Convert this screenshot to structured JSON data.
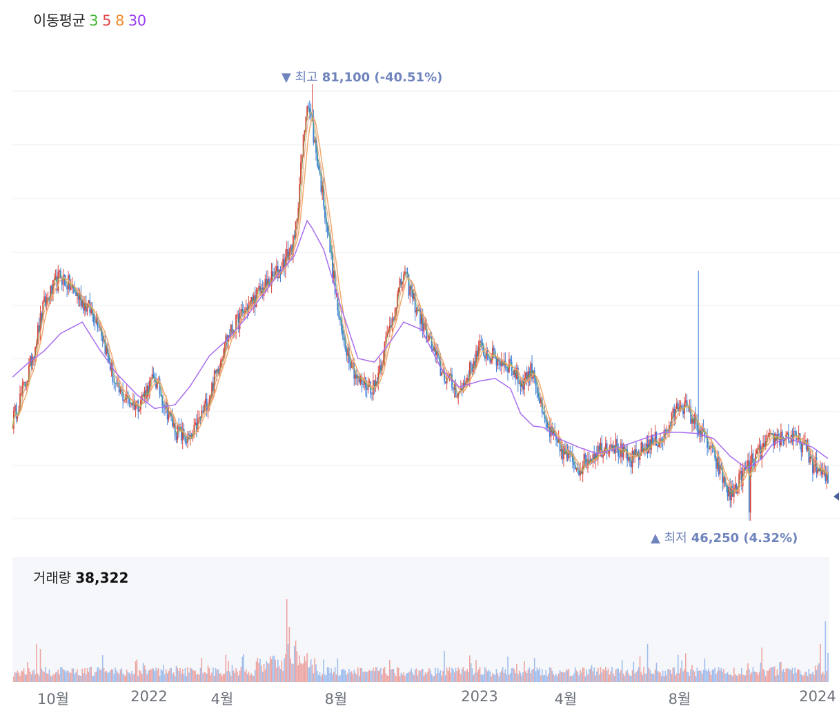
{
  "legend": {
    "label": "이동평균",
    "ma": [
      {
        "label": "3",
        "color": "#41b632"
      },
      {
        "label": "5",
        "color": "#e04848"
      },
      {
        "label": "8",
        "color": "#ec8b2c"
      },
      {
        "label": "30",
        "color": "#9b3cf0"
      }
    ]
  },
  "annotations": {
    "high": {
      "label": "최고",
      "value": "81,100 (-40.51%)",
      "marker": "▼"
    },
    "low": {
      "label": "최저",
      "value": "46,250 (4.32%)",
      "marker": "▲"
    }
  },
  "volume": {
    "label": "거래량",
    "value": "38,322"
  },
  "colors": {
    "up": "#d9453e",
    "down": "#3f7fd6",
    "ma3": "#41b632",
    "ma5": "#e04848",
    "ma8": "#f0ad72",
    "ma30": "#a86cf0",
    "vol_up": "#eca4a0",
    "vol_down": "#9fbdec",
    "annotation": "#6f84bd",
    "grid": "#eeeeee"
  },
  "chart_data": {
    "type": "candlestick",
    "price_high": 81100,
    "price_low": 46250,
    "x_tick_labels": [
      "10월",
      "2022",
      "4월",
      "8월",
      "2023",
      "4월",
      "8월",
      "2024"
    ],
    "close_series": [
      [
        0,
        54200
      ],
      [
        12,
        57800
      ],
      [
        25,
        63500
      ],
      [
        38,
        65800
      ],
      [
        55,
        63800
      ],
      [
        68,
        62200
      ],
      [
        82,
        56600
      ],
      [
        98,
        55500
      ],
      [
        112,
        57600
      ],
      [
        128,
        53500
      ],
      [
        140,
        52500
      ],
      [
        155,
        56200
      ],
      [
        168,
        60700
      ],
      [
        182,
        62900
      ],
      [
        195,
        64500
      ],
      [
        210,
        66200
      ],
      [
        222,
        68500
      ],
      [
        232,
        80000
      ],
      [
        236,
        77600
      ],
      [
        245,
        71800
      ],
      [
        258,
        61600
      ],
      [
        272,
        57400
      ],
      [
        285,
        56900
      ],
      [
        298,
        62100
      ],
      [
        308,
        66000
      ],
      [
        322,
        62200
      ],
      [
        338,
        58100
      ],
      [
        352,
        56400
      ],
      [
        368,
        60000
      ],
      [
        380,
        59200
      ],
      [
        392,
        58700
      ],
      [
        400,
        57200
      ],
      [
        410,
        58400
      ],
      [
        418,
        54200
      ],
      [
        430,
        52100
      ],
      [
        446,
        50500
      ],
      [
        460,
        51800
      ],
      [
        472,
        52500
      ],
      [
        486,
        50900
      ],
      [
        500,
        52300
      ],
      [
        513,
        53000
      ],
      [
        526,
        55800
      ],
      [
        540,
        53700
      ],
      [
        552,
        51400
      ],
      [
        565,
        48200
      ],
      [
        578,
        50400
      ],
      [
        590,
        51900
      ],
      [
        598,
        52800
      ],
      [
        610,
        53000
      ],
      [
        622,
        52400
      ],
      [
        630,
        50800
      ],
      [
        642,
        49400
      ]
    ],
    "ma30_series": [
      [
        0,
        57700
      ],
      [
        12,
        58800
      ],
      [
        25,
        59800
      ],
      [
        38,
        61200
      ],
      [
        55,
        62100
      ],
      [
        68,
        60000
      ],
      [
        82,
        58000
      ],
      [
        98,
        56300
      ],
      [
        112,
        55200
      ],
      [
        128,
        55500
      ],
      [
        140,
        57000
      ],
      [
        155,
        59400
      ],
      [
        168,
        60600
      ],
      [
        182,
        62200
      ],
      [
        195,
        64000
      ],
      [
        210,
        66000
      ],
      [
        222,
        67400
      ],
      [
        232,
        70200
      ],
      [
        236,
        69600
      ],
      [
        245,
        67900
      ],
      [
        258,
        63500
      ],
      [
        272,
        59200
      ],
      [
        285,
        58900
      ],
      [
        298,
        60600
      ],
      [
        308,
        62100
      ],
      [
        322,
        61500
      ],
      [
        338,
        58300
      ],
      [
        352,
        56900
      ],
      [
        368,
        57400
      ],
      [
        380,
        57600
      ],
      [
        392,
        56800
      ],
      [
        400,
        54800
      ],
      [
        410,
        53800
      ],
      [
        418,
        53700
      ],
      [
        430,
        52800
      ],
      [
        446,
        52100
      ],
      [
        460,
        51600
      ],
      [
        472,
        51900
      ],
      [
        486,
        52400
      ],
      [
        500,
        52900
      ],
      [
        513,
        53300
      ],
      [
        526,
        53300
      ],
      [
        540,
        53200
      ],
      [
        552,
        52800
      ],
      [
        565,
        51400
      ],
      [
        578,
        50400
      ],
      [
        590,
        51200
      ],
      [
        598,
        52300
      ],
      [
        610,
        52900
      ],
      [
        622,
        52400
      ],
      [
        630,
        52100
      ],
      [
        642,
        51200
      ]
    ],
    "volume_range": [
      0,
      100
    ]
  }
}
